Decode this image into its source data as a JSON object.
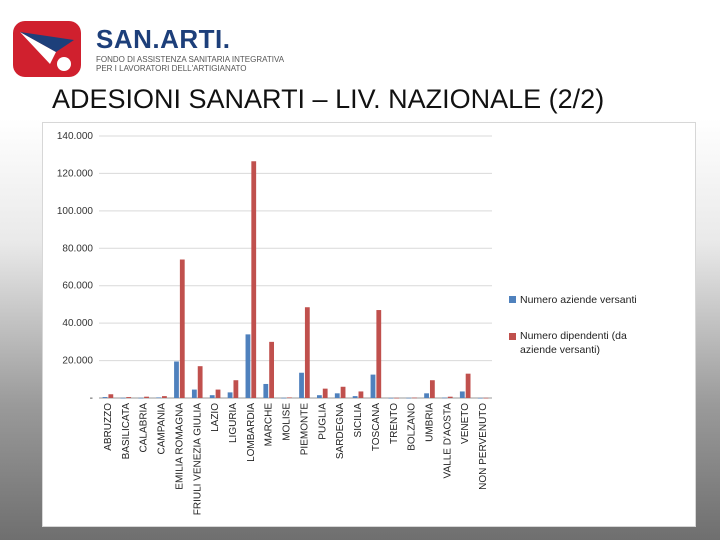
{
  "header": {
    "logo_name": "SAN.ARTI.",
    "logo_sub_1": "FONDO DI ASSISTENZA SANITARIA INTEGRATIVA",
    "logo_sub_2": "PER I LAVORATORI DELL'ARTIGIANATO",
    "title": "ADESIONI SANARTI – LIV. NAZIONALE (2/2)"
  },
  "colors": {
    "series_1": "#4f81bd",
    "series_2": "#c0504d",
    "brand_red": "#d0202e",
    "brand_blue": "#1d3f7a"
  },
  "chart_data": {
    "type": "bar",
    "categories": [
      "ABRUZZO",
      "BASILICATA",
      "CALABRIA",
      "CAMPANIA",
      "EMILIA ROMAGNA",
      "FRIULI VENEZIA GIULIA",
      "LAZIO",
      "LIGURIA",
      "LOMBARDIA",
      "MARCHE",
      "MOLISE",
      "PIEMONTE",
      "PUGLIA",
      "SARDEGNA",
      "SICILIA",
      "TOSCANA",
      "TRENTO",
      "BOLZANO",
      "UMBRIA",
      "VALLE D'AOSTA",
      "VENETO",
      "NON PERVENUTO"
    ],
    "series": [
      {
        "name": "Numero aziende versanti",
        "values": [
          500,
          100,
          100,
          300,
          19500,
          4500,
          1500,
          3000,
          34000,
          7500,
          100,
          13500,
          1500,
          2500,
          1000,
          12500,
          50,
          100,
          2500,
          200,
          3500,
          50
        ]
      },
      {
        "name": "Numero dipendenti (da aziende versanti)",
        "values": [
          2000,
          500,
          700,
          1000,
          74000,
          17000,
          4500,
          9500,
          126500,
          30000,
          300,
          48500,
          5000,
          6000,
          3500,
          47000,
          100,
          200,
          9500,
          700,
          13000,
          100
        ]
      }
    ],
    "yticks": [
      "-",
      "20.000",
      "40.000",
      "60.000",
      "80.000",
      "100.000",
      "120.000",
      "140.000"
    ],
    "ylim": [
      0,
      140000
    ],
    "grid": true,
    "legend": "right"
  }
}
